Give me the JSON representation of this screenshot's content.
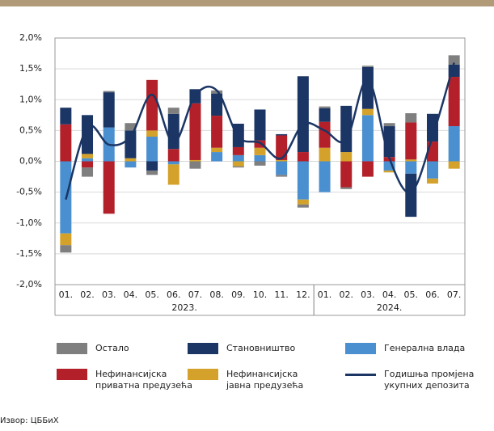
{
  "chart_data": {
    "type": "bar",
    "categories": [
      "01.",
      "02.",
      "03.",
      "04.",
      "05.",
      "06.",
      "07.",
      "08.",
      "09.",
      "10.",
      "11.",
      "12.",
      "01.",
      "02.",
      "03.",
      "04.",
      "05.",
      "06.",
      "07."
    ],
    "groups": [
      {
        "label": "2023.",
        "count": 12
      },
      {
        "label": "2024.",
        "count": 7
      }
    ],
    "ylim": [
      -2,
      2
    ],
    "yticks": [
      {
        "value": -2,
        "label": "-2,0%"
      },
      {
        "value": -1.5,
        "label": "-1,5%"
      },
      {
        "value": -1,
        "label": "-1,0%"
      },
      {
        "value": -0.5,
        "label": "-0,5%"
      },
      {
        "value": 0,
        "label": "0,0%"
      },
      {
        "value": 0.5,
        "label": "0,5%"
      },
      {
        "value": 1,
        "label": "1,0%"
      },
      {
        "value": 1.5,
        "label": "1,5%"
      },
      {
        "value": 2,
        "label": "2,0%"
      }
    ],
    "grid": true,
    "series": [
      {
        "name": "Генерална влада",
        "color": "#4a90d0",
        "values": [
          -1.17,
          0.05,
          0.55,
          -0.1,
          0.4,
          -0.05,
          0,
          0.15,
          0.1,
          0.1,
          -0.22,
          -0.62,
          -0.5,
          0,
          0.75,
          -0.15,
          -0.2,
          -0.28,
          0.57
        ]
      },
      {
        "name": "Нефинансијска јавна предузећа",
        "color": "#d4a22a",
        "values": [
          -0.19,
          0.07,
          0,
          0.05,
          0.1,
          -0.33,
          0.02,
          0.07,
          -0.08,
          0.12,
          0.02,
          -0.08,
          0.22,
          0.15,
          0.1,
          -0.03,
          0.03,
          -0.08,
          -0.12
        ]
      },
      {
        "name": "Нефинансијска приватна предузећа",
        "color": "#b3202a",
        "values": [
          0.6,
          -0.1,
          -0.85,
          0,
          0.82,
          0.2,
          0.92,
          0.52,
          0.13,
          0.12,
          0.4,
          0.15,
          0.42,
          -0.42,
          -0.25,
          0.07,
          0.6,
          0.32,
          0.8
        ]
      },
      {
        "name": "Становништво",
        "color": "#1b3564",
        "values": [
          0.27,
          0.63,
          0.57,
          0.45,
          -0.15,
          0.57,
          0.23,
          0.36,
          0.38,
          0.5,
          0.02,
          1.23,
          0.22,
          0.75,
          0.68,
          0.5,
          -0.7,
          0.45,
          0.2
        ]
      },
      {
        "name": "Остало",
        "color": "#7f7f7f",
        "values": [
          -0.12,
          -0.15,
          0.02,
          0.12,
          -0.07,
          0.1,
          -0.12,
          0.05,
          -0.02,
          -0.07,
          -0.03,
          -0.05,
          0.03,
          -0.03,
          0.02,
          0.05,
          0.15,
          0,
          0.15
        ]
      },
      {
        "name": "Годишња промјена укупних депозита",
        "type": "line",
        "color": "#1b3564",
        "values": [
          -0.62,
          0.55,
          0.27,
          0.4,
          1.08,
          0.3,
          1.07,
          1.15,
          0.4,
          0.3,
          0.05,
          0.6,
          0.5,
          0.35,
          1.33,
          0.05,
          -0.5,
          0.4,
          1.6
        ]
      }
    ],
    "source": "Извор: ЦББиХ"
  }
}
